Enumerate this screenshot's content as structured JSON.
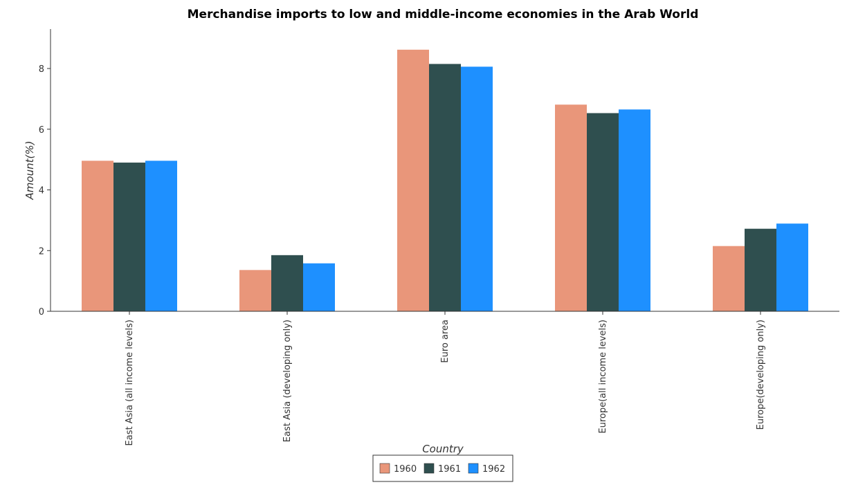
{
  "chart_data": {
    "type": "bar",
    "title": "Merchandise imports to low and middle-income economies in the Arab World",
    "xlabel": "Country",
    "ylabel": "Amount(%)",
    "ylim": [
      0,
      9.3
    ],
    "yticks": [
      0,
      2,
      4,
      6,
      8
    ],
    "ytick_labels": [
      "0",
      "2",
      "4",
      "6",
      "8"
    ],
    "grid": false,
    "legend_position": "bottom-center",
    "categories": [
      "East Asia (all income levels)",
      "East Asia (developing only)",
      "Euro area",
      "Europe(all income levels)",
      "Europe(developing only)"
    ],
    "series": [
      {
        "name": "1960",
        "color": "#e9967a",
        "values": [
          4.96,
          1.36,
          8.62,
          6.81,
          2.15
        ]
      },
      {
        "name": "1961",
        "color": "#2f4f4f",
        "values": [
          4.9,
          1.85,
          8.15,
          6.53,
          2.72
        ]
      },
      {
        "name": "1962",
        "color": "#1e90ff",
        "values": [
          4.96,
          1.58,
          8.06,
          6.65,
          2.89
        ]
      }
    ]
  }
}
